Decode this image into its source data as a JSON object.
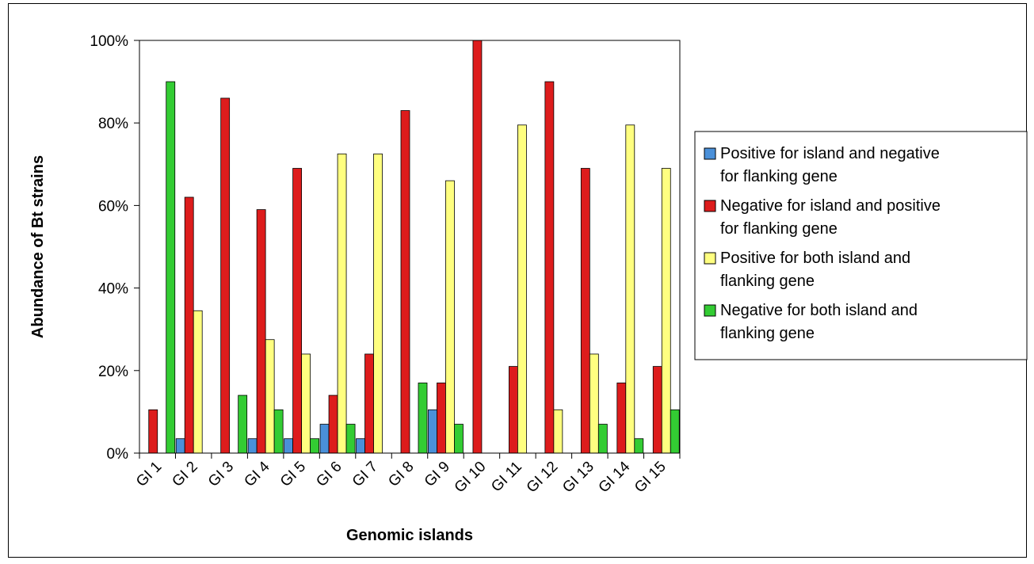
{
  "chart_data": {
    "type": "bar",
    "xlabel": "Genomic islands",
    "ylabel": "Abundance of Bt strains",
    "ylim": [
      0,
      100
    ],
    "yticks": [
      "0%",
      "20%",
      "40%",
      "60%",
      "80%",
      "100%"
    ],
    "grid": false,
    "legend_position": "right",
    "categories": [
      "GI 1",
      "GI 2",
      "GI 3",
      "GI 4",
      "GI 5",
      "GI 6",
      "GI 7",
      "GI 8",
      "GI 9",
      "GI 10",
      "GI 11",
      "GI 12",
      "GI 13",
      "GI 14",
      "GI 15"
    ],
    "series": [
      {
        "name": "Positive for island and negative for flanking gene",
        "name_lines": [
          "Positive for island and negative",
          "for flanking gene"
        ],
        "color": "#4a90d9",
        "values": [
          0,
          3.5,
          0,
          3.5,
          3.5,
          7,
          3.5,
          0,
          10.5,
          0,
          0,
          0,
          0,
          0,
          0
        ]
      },
      {
        "name": "Negative for island and positive for flanking gene",
        "name_lines": [
          "Negative for island and positive",
          "for flanking gene"
        ],
        "color": "#dd1c1c",
        "values": [
          10.5,
          62,
          86,
          59,
          69,
          14,
          24,
          83,
          17,
          100,
          21,
          90,
          69,
          17,
          21
        ]
      },
      {
        "name": "Positive for both island and flanking gene",
        "name_lines": [
          "Positive for both island and",
          "flanking gene"
        ],
        "color": "#ffff80",
        "values": [
          0,
          34.5,
          0,
          27.5,
          24,
          72.5,
          72.5,
          0,
          66,
          0,
          79.5,
          10.5,
          24,
          79.5,
          69
        ]
      },
      {
        "name": "Negative for both island and flanking gene",
        "name_lines": [
          "Negative for both island and",
          "flanking gene"
        ],
        "color": "#33cc33",
        "values": [
          90,
          0,
          14,
          10.5,
          3.5,
          7,
          0,
          17,
          7,
          0,
          0,
          0,
          7,
          3.5,
          10.5
        ]
      }
    ]
  }
}
